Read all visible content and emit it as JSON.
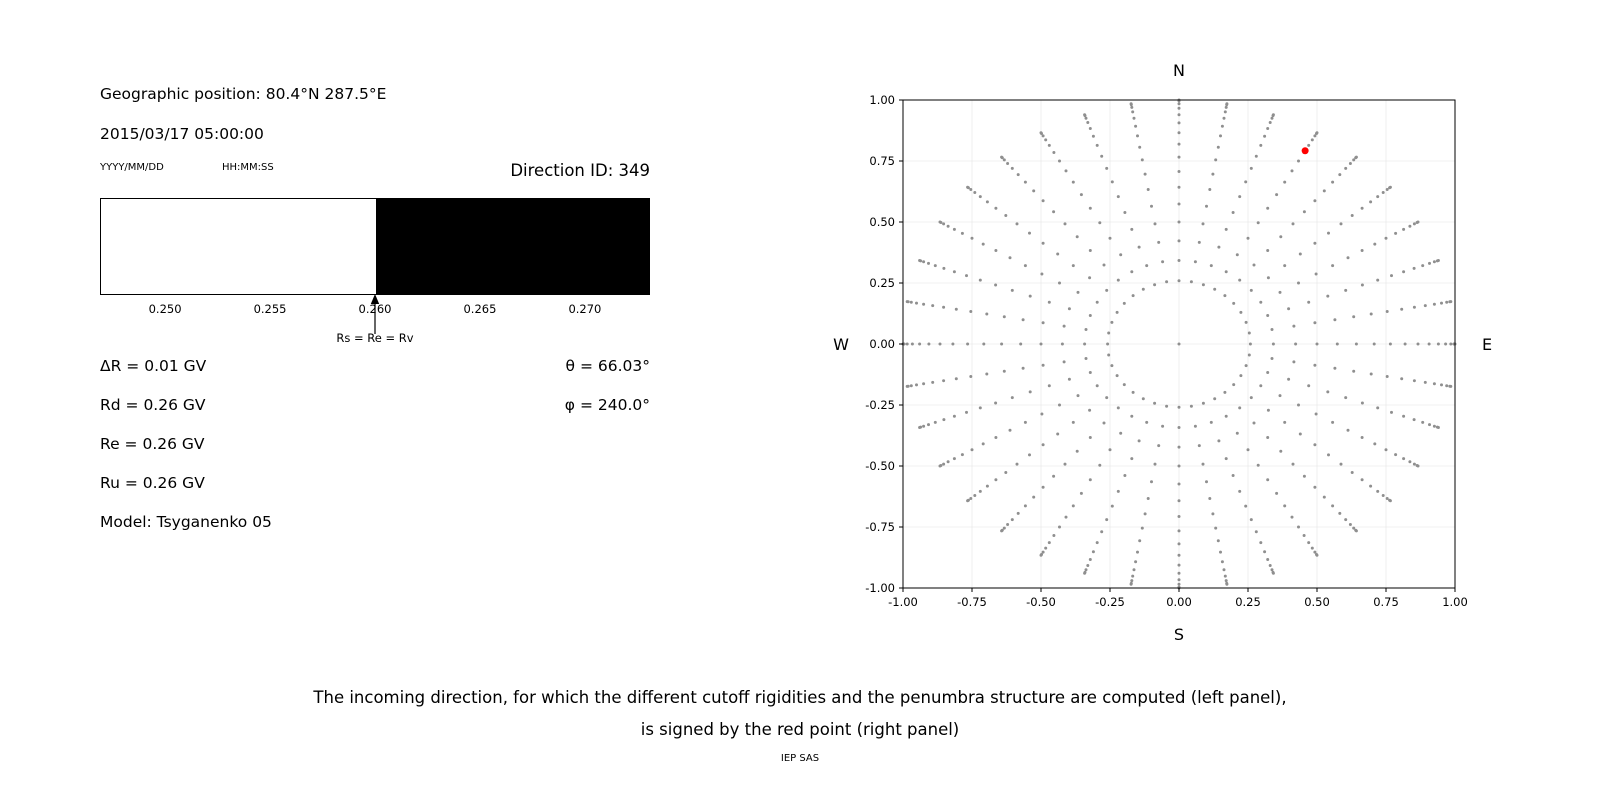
{
  "page": {
    "caption_line1": "The incoming direction, for which the different cutoff rigidities and the penumbra structure are computed (left panel),",
    "caption_line2": "is signed by the red point (right panel)",
    "footer": "IEP SAS"
  },
  "left_panel": {
    "geographic_position": "Geographic position: 80.4°N 287.5°E",
    "datetime": "2015/03/17 05:00:00",
    "date_format_label": "YYYY/MM/DD",
    "time_format_label": "HH:MM:SS",
    "direction_id": "Direction ID: 349",
    "arrow_label": "Rs = Re = Rv",
    "values_left": [
      {
        "text": "ΔR = 0.01 GV"
      },
      {
        "text": "Rd = 0.26 GV"
      },
      {
        "text": "Re = 0.26 GV"
      },
      {
        "text": "Ru = 0.26 GV"
      },
      {
        "text": "Model: Tsyganenko 05"
      }
    ],
    "values_right": [
      {
        "text": "θ = 66.03°"
      },
      {
        "text": "φ = 240.0°"
      }
    ]
  },
  "chart_data": [
    {
      "type": "bar",
      "panel": "penumbra-structure",
      "x_range": [
        0.2469,
        0.2731
      ],
      "x_ticks": [
        0.25,
        0.255,
        0.26,
        0.265,
        0.27
      ],
      "tick_decimals": 3,
      "regions": [
        {
          "from": 0.2469,
          "to": 0.26,
          "color": "#ffffff"
        },
        {
          "from": 0.26,
          "to": 0.2731,
          "color": "#000000"
        }
      ],
      "annotation": {
        "x": 0.26,
        "label": "Rs = Re = Rv"
      }
    },
    {
      "type": "scatter",
      "panel": "incoming-direction-map",
      "xlim": [
        -1,
        1
      ],
      "ylim": [
        -1,
        1
      ],
      "x_ticks": [
        -1,
        -0.75,
        -0.5,
        -0.25,
        0,
        0.25,
        0.5,
        0.75,
        1
      ],
      "y_ticks": [
        1,
        0.75,
        0.5,
        0.25,
        0,
        -0.25,
        -0.5,
        -0.75,
        -1
      ],
      "tick_decimals": 2,
      "cardinal_labels": {
        "top": "N",
        "bottom": "S",
        "left": "W",
        "right": "E"
      },
      "grid_dots": {
        "azimuth_deg_start": 0,
        "azimuth_deg_step": 10,
        "azimuth_count": 36,
        "zenith_deg_start": 15,
        "zenith_deg_end": 90,
        "zenith_deg_step": 5,
        "radius_mapping": "sin(zenith)",
        "color": "#8f8f8f",
        "include_center_point": true
      },
      "red_point": {
        "x": 0.457,
        "y": 0.792,
        "color": "#ff0000"
      },
      "grid_line_color": "#ebebeb"
    }
  ]
}
